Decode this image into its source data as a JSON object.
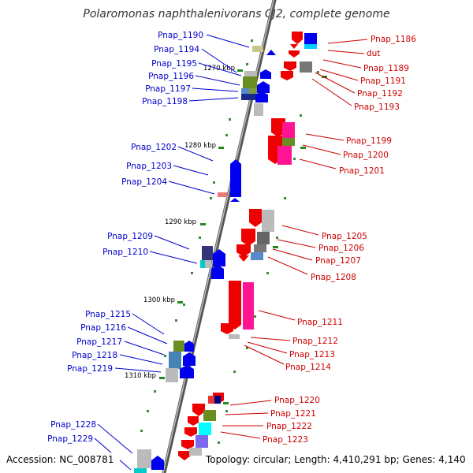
{
  "title": "Polaromonas naphthalenivorans CJ2, complete genome",
  "footer": {
    "accession": "Accession: NC_008781",
    "topology": "Topology: circular; Length: 4,410,291 bp; Genes: 4,140"
  },
  "colors": {
    "forward_label": "#0000cc",
    "reverse_label": "#cc0000",
    "backbone": "#777777",
    "tick": "#228822"
  },
  "ticks": [
    "1270 kbp",
    "1280 kbp",
    "1290 kbp",
    "1300 kbp",
    "1310 kbp"
  ],
  "genes_left": [
    "Pnap_1190",
    "Pnap_1194",
    "Pnap_1195",
    "Pnap_1196",
    "Pnap_1197",
    "Pnap_1198",
    "Pnap_1202",
    "Pnap_1203",
    "Pnap_1204",
    "Pnap_1209",
    "Pnap_1210",
    "Pnap_1215",
    "Pnap_1216",
    "Pnap_1217",
    "Pnap_1218",
    "Pnap_1219",
    "Pnap_1228",
    "Pnap_1229"
  ],
  "genes_right": [
    "Pnap_1186",
    "dut",
    "Pnap_1189",
    "Pnap_1191",
    "Pnap_1192",
    "Pnap_1193",
    "Pnap_1199",
    "Pnap_1200",
    "Pnap_1201",
    "Pnap_1205",
    "Pnap_1206",
    "Pnap_1207",
    "Pnap_1208",
    "Pnap_1211",
    "Pnap_1212",
    "Pnap_1213",
    "Pnap_1214",
    "Pnap_1220",
    "Pnap_1221",
    "Pnap_1222",
    "Pnap_1223"
  ]
}
